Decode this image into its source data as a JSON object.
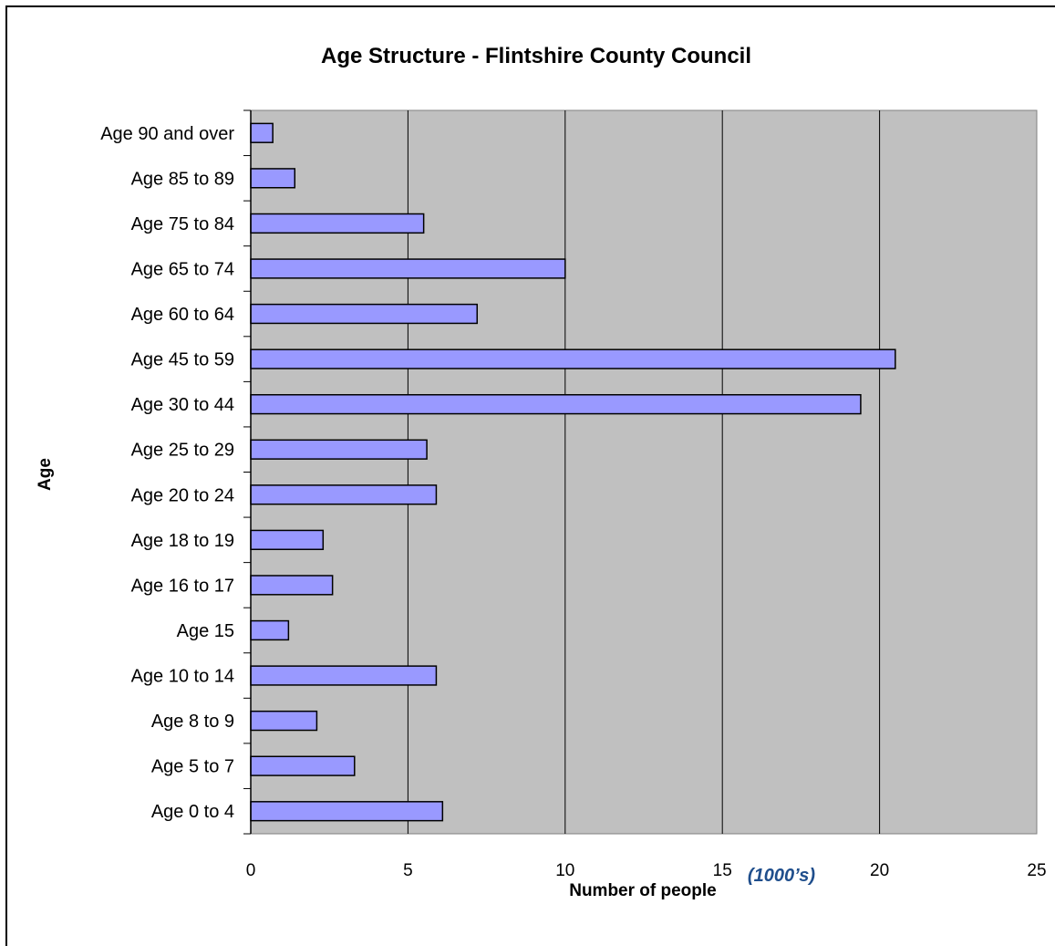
{
  "chart_data": {
    "type": "bar",
    "orientation": "horizontal",
    "title": "Age Structure - Flintshire County Council",
    "xlabel": "Number of people",
    "xlabel_unit": "(1000’s)",
    "ylabel": "Age",
    "categories": [
      "Age 0 to 4",
      "Age 5 to 7",
      "Age 8 to 9",
      "Age 10 to 14",
      "Age 15",
      "Age 16 to 17",
      "Age 18 to 19",
      "Age 20 to 24",
      "Age 25 to 29",
      "Age 30 to 44",
      "Age 45 to 59",
      "Age 60 to 64",
      "Age 65 to 74",
      "Age 75 to 84",
      "Age 85 to 89",
      "Age 90 and over"
    ],
    "values": [
      6.1,
      3.3,
      2.1,
      5.9,
      1.2,
      2.6,
      2.3,
      5.9,
      5.6,
      19.4,
      20.5,
      7.2,
      10.0,
      5.5,
      1.4,
      0.7
    ],
    "xlim": [
      0,
      25
    ],
    "xticks": [
      0,
      5,
      10,
      15,
      20,
      25
    ],
    "grid": "vertical",
    "legend": "none",
    "colors": {
      "bar_fill": "#9999ff",
      "bar_stroke": "#000000",
      "plot_background": "#c0c0c0",
      "unit_text": "#1f4e8c"
    }
  }
}
